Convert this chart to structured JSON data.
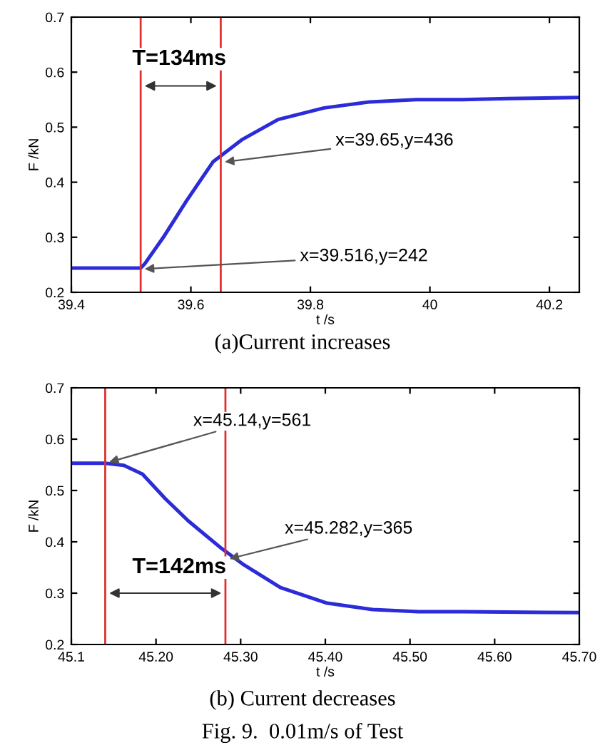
{
  "chart_data": [
    {
      "type": "line",
      "xlabel": "t /s",
      "ylabel": "F /kN",
      "xlim": [
        39.4,
        40.25
      ],
      "ylim": [
        0.2,
        0.7
      ],
      "xticks": [
        39.4,
        39.6,
        39.8,
        40,
        40.2
      ],
      "yticks": [
        0.2,
        0.3,
        0.4,
        0.5,
        0.6,
        0.7
      ],
      "grid": false,
      "legend": false,
      "series": [
        {
          "color": "#2b2bd8",
          "x": [
            39.4,
            39.45,
            39.516,
            39.523,
            39.554,
            39.592,
            39.637,
            39.685,
            39.746,
            39.823,
            39.9,
            39.977,
            40.054,
            40.13,
            40.246
          ],
          "values": [
            0.244,
            0.244,
            0.244,
            0.252,
            0.3,
            0.365,
            0.437,
            0.477,
            0.514,
            0.535,
            0.546,
            0.55,
            0.55,
            0.552,
            0.554
          ]
        }
      ],
      "ref_lines": [
        {
          "axis": "x",
          "value": 39.516,
          "color": "#e03030"
        },
        {
          "axis": "x",
          "value": 39.65,
          "color": "#e03030"
        }
      ],
      "annotations": [
        {
          "text": "x=39.65,y=436",
          "x": 39.65,
          "y": 0.436
        },
        {
          "text": "x=39.516,y=242",
          "x": 39.516,
          "y": 0.242
        },
        "T=134ms",
        "(a)Current increases"
      ]
    },
    {
      "type": "line",
      "xlabel": "t /s",
      "ylabel": "F /kN",
      "xlim": [
        45.1,
        45.7
      ],
      "ylim": [
        0.2,
        0.7
      ],
      "xticks": [
        {
          "value": 45.1,
          "label": "45.1"
        },
        {
          "value": 45.2,
          "label": "45.20"
        },
        {
          "value": 45.3,
          "label": "45.30"
        },
        {
          "value": 45.4,
          "label": "45.40"
        },
        {
          "value": 45.5,
          "label": "45.50"
        },
        {
          "value": 45.6,
          "label": "45.60"
        },
        {
          "value": 45.7,
          "label": "45.70"
        }
      ],
      "yticks": [
        0.2,
        0.3,
        0.4,
        0.5,
        0.6,
        0.7
      ],
      "grid": false,
      "legend": false,
      "series": [
        {
          "color": "#2b2bd8",
          "x": [
            45.1,
            45.14,
            45.162,
            45.184,
            45.211,
            45.238,
            45.276,
            45.304,
            45.347,
            45.401,
            45.456,
            45.51,
            45.564,
            45.7
          ],
          "values": [
            0.553,
            0.553,
            0.549,
            0.532,
            0.484,
            0.441,
            0.389,
            0.355,
            0.311,
            0.281,
            0.268,
            0.264,
            0.264,
            0.262
          ]
        }
      ],
      "ref_lines": [
        {
          "axis": "x",
          "value": 45.14,
          "color": "#e03030"
        },
        {
          "axis": "x",
          "value": 45.282,
          "color": "#e03030"
        }
      ],
      "annotations": [
        {
          "text": "x=45.14,y=561",
          "x": 45.14,
          "y": 0.553
        },
        {
          "text": "x=45.282,y=365",
          "x": 45.282,
          "y": 0.365
        },
        "T=142ms",
        "(b) Current decreases",
        "Fig. 9.  0.01m/s of Test"
      ]
    }
  ]
}
